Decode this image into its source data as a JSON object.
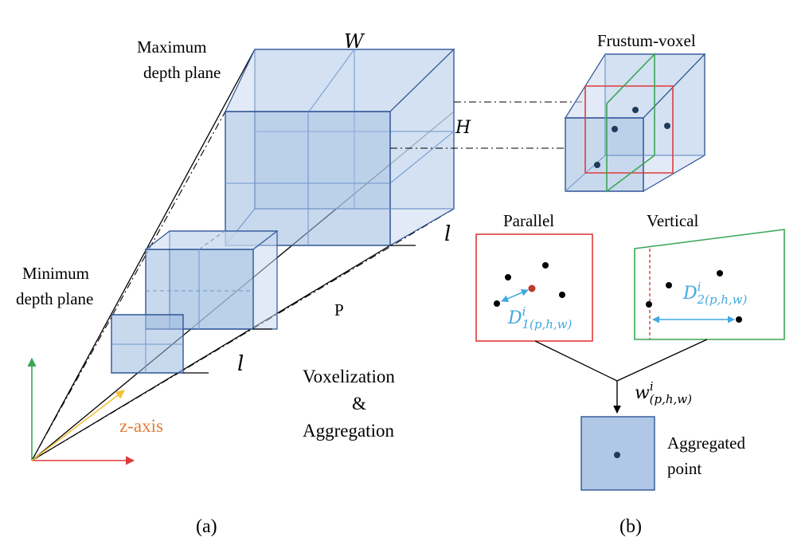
{
  "panel_a": {
    "label": "(a)",
    "max_depth_plane": [
      "Maximum",
      "depth plane"
    ],
    "min_depth_plane": [
      "Minimum",
      "depth plane"
    ],
    "width_symbol": "W",
    "height_symbol": "H",
    "length_symbol_upper": "l",
    "length_symbol_lower": "l",
    "p_label": "P",
    "z_axis": "z-axis",
    "process": [
      "Voxelization",
      "&",
      "Aggregation"
    ]
  },
  "panel_b": {
    "label": "(b)",
    "frustum_voxel": "Frustum-voxel",
    "parallel": "Parallel",
    "vertical": "Vertical",
    "d1_base": "D",
    "d1_sup": "i",
    "d1_sub": "1(p,h,w)",
    "d2_base": "D",
    "d2_sup": "i",
    "d2_sub": "2(p,h,w)",
    "w_base": "w",
    "w_sup": "i",
    "w_sub": "(p,h,w)",
    "aggregated": [
      "Aggregated",
      "point"
    ]
  },
  "colors": {
    "box_fill": "#9cb9de",
    "box_stroke": "#2f5597",
    "parallel_frame": "#e03b3b",
    "vertical_frame": "#3aa655",
    "distance_arrow": "#3fa9e0",
    "z_axis": "#f2c037",
    "y_axis": "#3aa655",
    "x_axis": "#e03b3b",
    "highlight_point": "#c0392b"
  }
}
